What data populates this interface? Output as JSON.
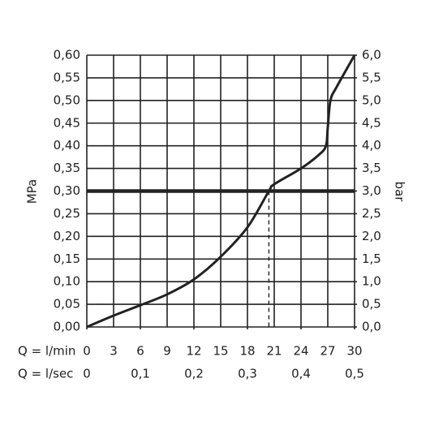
{
  "chart_data": {
    "type": "line",
    "y_label": "MPa",
    "y2_label": "bar",
    "x_label": "Q = l/min",
    "x2_label": "Q = l/sec",
    "x": [
      0,
      3,
      6,
      9,
      12,
      15,
      18,
      20.4,
      21,
      24,
      26,
      26.8,
      27,
      27.3,
      28,
      30
    ],
    "series": [
      {
        "color": "#222222",
        "values": [
          0,
          0.025,
          0.048,
          0.072,
          0.105,
          0.155,
          0.22,
          0.3,
          0.315,
          0.35,
          0.38,
          0.4,
          0.44,
          0.5,
          0.53,
          0.6
        ]
      }
    ],
    "reference_line_y": 0.3,
    "intersection_x": 20.4,
    "xlim": [
      0,
      30
    ],
    "xticks": [
      0,
      3,
      6,
      9,
      12,
      15,
      18,
      21,
      24,
      27,
      30
    ],
    "x2lim": [
      0,
      0.5
    ],
    "x2ticks": [
      0,
      {
        "value": 0.1,
        "label": "0,1"
      },
      {
        "value": 0.2,
        "label": "0,2"
      },
      {
        "value": 0.3,
        "label": "0,3"
      },
      {
        "value": 0.4,
        "label": "0,4"
      },
      {
        "value": 0.5,
        "label": "0,5"
      }
    ],
    "ylim": [
      0,
      0.6
    ],
    "yticks": [
      {
        "value": 0,
        "label": "0,00"
      },
      {
        "value": 0.05,
        "label": "0,05"
      },
      {
        "value": 0.1,
        "label": "0,10"
      },
      {
        "value": 0.15,
        "label": "0,15"
      },
      {
        "value": 0.2,
        "label": "0,20"
      },
      {
        "value": 0.25,
        "label": "0,25"
      },
      {
        "value": 0.3,
        "label": "0,30"
      },
      {
        "value": 0.35,
        "label": "0,35"
      },
      {
        "value": 0.4,
        "label": "0,40"
      },
      {
        "value": 0.45,
        "label": "0,45"
      },
      {
        "value": 0.5,
        "label": "0,50"
      },
      {
        "value": 0.55,
        "label": "0,55"
      },
      {
        "value": 0.6,
        "label": "0,60"
      }
    ],
    "y2lim": [
      0,
      6
    ],
    "y2ticks": [
      {
        "value": 0,
        "label": "0,0"
      },
      {
        "value": 0.5,
        "label": "0,5"
      },
      {
        "value": 1,
        "label": "1,0"
      },
      {
        "value": 1.5,
        "label": "1,5"
      },
      {
        "value": 2,
        "label": "2,0"
      },
      {
        "value": 2.5,
        "label": "2,5"
      },
      {
        "value": 3,
        "label": "3,0"
      },
      {
        "value": 3.5,
        "label": "3,5"
      },
      {
        "value": 4,
        "label": "4,0"
      },
      {
        "value": 4.5,
        "label": "4,5"
      },
      {
        "value": 5,
        "label": "5,0"
      },
      {
        "value": 5.5,
        "label": "5,5"
      },
      {
        "value": 6,
        "label": "6,0"
      }
    ],
    "grid": true
  }
}
